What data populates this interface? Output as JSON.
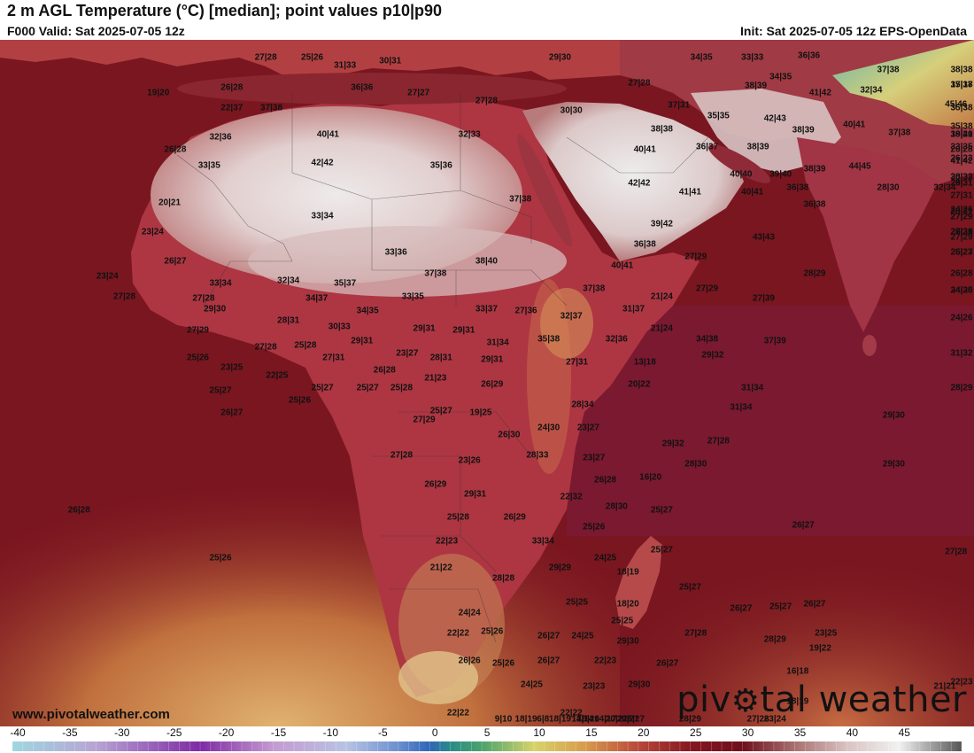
{
  "header": {
    "title": "2 m AGL Temperature (°C) [median]; point values p10|p90",
    "valid": "F000 Valid: Sat 2025-07-05 12z",
    "init": "Init: Sat 2025-07-05 12z EPS-OpenData"
  },
  "footer": {
    "website": "www.pivotalweather.com",
    "brand_left": "piv",
    "brand_right": "tal weather"
  },
  "colors": {
    "ocean": "#7a1620",
    "land_hot": "#e9dcdc",
    "land_warm": "#b0343d",
    "brand_accent": "#111111"
  },
  "colorbar": {
    "ticks": [
      "-40",
      "-35",
      "-30",
      "-25",
      "-20",
      "-15",
      "-10",
      "-5",
      "0",
      "5",
      "10",
      "15",
      "20",
      "25",
      "30",
      "35",
      "40",
      "45"
    ],
    "min": -40,
    "max": 51,
    "stops": [
      [
        -40,
        "#9fd7e0"
      ],
      [
        -32,
        "#b7a4d3"
      ],
      [
        -22,
        "#7e2aa4"
      ],
      [
        -15,
        "#c49ad1"
      ],
      [
        -8,
        "#b8c3e4"
      ],
      [
        -3,
        "#6c8fcf"
      ],
      [
        0,
        "#2f66b7"
      ],
      [
        2,
        "#2a8b87"
      ],
      [
        5,
        "#4aa36c"
      ],
      [
        10,
        "#d7d36a"
      ],
      [
        15,
        "#d89a4c"
      ],
      [
        20,
        "#b9483a"
      ],
      [
        25,
        "#851720"
      ],
      [
        30,
        "#6e0f1c"
      ],
      [
        35,
        "#a8706e"
      ],
      [
        40,
        "#d9c2c2"
      ],
      [
        45,
        "#f1f1f1"
      ],
      [
        51,
        "#555555"
      ]
    ]
  },
  "points": [
    {
      "label": "27|28",
      "lon": -8.5,
      "lat": 35.9
    },
    {
      "label": "25|26",
      "lon": -4.4,
      "lat": 35.9
    },
    {
      "label": "31|33",
      "lon": -1.5,
      "lat": 35.2
    },
    {
      "label": "30|31",
      "lon": 2.5,
      "lat": 35.6
    },
    {
      "label": "26|28",
      "lon": -11.5,
      "lat": 33.3
    },
    {
      "label": "36|36",
      "lon": 0.0,
      "lat": 33.3
    },
    {
      "label": "27|27",
      "lon": 5.0,
      "lat": 32.8
    },
    {
      "label": "27|28",
      "lon": 11.0,
      "lat": 32.1
    },
    {
      "label": "29|30",
      "lon": 17.5,
      "lat": 35.9
    },
    {
      "label": "27|28",
      "lon": 24.5,
      "lat": 33.7
    },
    {
      "label": "34|35",
      "lon": 30.0,
      "lat": 35.9
    },
    {
      "label": "33|33",
      "lon": 34.5,
      "lat": 35.9
    },
    {
      "label": "36|36",
      "lon": 39.5,
      "lat": 36.1
    },
    {
      "label": "37|38",
      "lon": 46.5,
      "lat": 34.8
    },
    {
      "label": "38|38",
      "lon": 57.5,
      "lat": 34.8
    },
    {
      "label": "35|37",
      "lon": 60.5,
      "lat": 33.5
    },
    {
      "label": "17|18",
      "lon": 64.5,
      "lat": 33.5
    },
    {
      "label": "19|20",
      "lon": -18.0,
      "lat": 32.8
    },
    {
      "label": "22|37",
      "lon": -11.5,
      "lat": 31.5
    },
    {
      "label": "37|38",
      "lon": -8.0,
      "lat": 31.5
    },
    {
      "label": "37|31",
      "lon": 28.0,
      "lat": 31.7
    },
    {
      "label": "38|39",
      "lon": 34.8,
      "lat": 33.4
    },
    {
      "label": "34|35",
      "lon": 37.0,
      "lat": 34.2
    },
    {
      "label": "41|42",
      "lon": 40.5,
      "lat": 32.8
    },
    {
      "label": "32|34",
      "lon": 45.0,
      "lat": 33.0
    },
    {
      "label": "35|38",
      "lon": 58.0,
      "lat": 31.5
    },
    {
      "label": "30|30",
      "lon": 18.5,
      "lat": 31.2
    },
    {
      "label": "35|35",
      "lon": 31.5,
      "lat": 30.8
    },
    {
      "label": "42|43",
      "lon": 36.5,
      "lat": 30.5
    },
    {
      "label": "45|46",
      "lon": 52.5,
      "lat": 31.8
    },
    {
      "label": "38|38",
      "lon": 26.5,
      "lat": 29.6
    },
    {
      "label": "38|39",
      "lon": 39.0,
      "lat": 29.5
    },
    {
      "label": "40|41",
      "lon": 43.5,
      "lat": 30.0
    },
    {
      "label": "37|38",
      "lon": 47.5,
      "lat": 29.3
    },
    {
      "label": "35|38",
      "lon": 54.0,
      "lat": 29.8
    },
    {
      "label": "39|41",
      "lon": 58.5,
      "lat": 29.1
    },
    {
      "label": "18|20",
      "lon": 71.0,
      "lat": 29.1
    },
    {
      "label": "40|41",
      "lon": -3.0,
      "lat": 29.1
    },
    {
      "label": "32|33",
      "lon": 9.5,
      "lat": 29.1
    },
    {
      "label": "32|36",
      "lon": -12.5,
      "lat": 28.9
    },
    {
      "label": "36|37",
      "lon": 30.5,
      "lat": 28.0
    },
    {
      "label": "38|39",
      "lon": 35.0,
      "lat": 28.0
    },
    {
      "label": "33|35",
      "lon": 61.0,
      "lat": 28.0
    },
    {
      "label": "26|28",
      "lon": 65.5,
      "lat": 27.8
    },
    {
      "label": "26|28",
      "lon": -16.5,
      "lat": 27.8
    },
    {
      "label": "40|41",
      "lon": 25.0,
      "lat": 27.8
    },
    {
      "label": "41|42",
      "lon": 55.5,
      "lat": 26.8
    },
    {
      "label": "26|23",
      "lon": 69.5,
      "lat": 27.0
    },
    {
      "label": "33|35",
      "lon": -13.5,
      "lat": 26.4
    },
    {
      "label": "42|42",
      "lon": -3.5,
      "lat": 26.6
    },
    {
      "label": "35|36",
      "lon": 7.0,
      "lat": 26.4
    },
    {
      "label": "38|39",
      "lon": 40.0,
      "lat": 26.1
    },
    {
      "label": "44|45",
      "lon": 44.0,
      "lat": 26.3
    },
    {
      "label": "39|40",
      "lon": 37.0,
      "lat": 25.6
    },
    {
      "label": "40|40",
      "lon": 33.5,
      "lat": 25.6
    },
    {
      "label": "28|32",
      "lon": 57.0,
      "lat": 25.4
    },
    {
      "label": "30|33",
      "lon": 63.5,
      "lat": 25.4
    },
    {
      "label": "42|42",
      "lon": 24.5,
      "lat": 24.8
    },
    {
      "label": "28|31",
      "lon": 67.5,
      "lat": 24.8
    },
    {
      "label": "29|31",
      "lon": 70.5,
      "lat": 24.8
    },
    {
      "label": "41|41",
      "lon": 29.0,
      "lat": 24.0
    },
    {
      "label": "40|41",
      "lon": 34.5,
      "lat": 24.0
    },
    {
      "label": "36|38",
      "lon": 38.5,
      "lat": 24.4
    },
    {
      "label": "28|30",
      "lon": 46.5,
      "lat": 24.4
    },
    {
      "label": "32|34",
      "lon": 51.5,
      "lat": 24.4
    },
    {
      "label": "27|31",
      "lon": 64.5,
      "lat": 23.7
    },
    {
      "label": "20|21",
      "lon": -17.0,
      "lat": 23.1
    },
    {
      "label": "37|38",
      "lon": 14.0,
      "lat": 23.4
    },
    {
      "label": "36|38",
      "lon": 40.0,
      "lat": 22.9
    },
    {
      "label": "28|31",
      "lon": 56.0,
      "lat": 22.3
    },
    {
      "label": "24|26",
      "lon": 60.5,
      "lat": 22.5
    },
    {
      "label": "27|29",
      "lon": 63.5,
      "lat": 21.8
    },
    {
      "label": "27|29",
      "lon": 68.0,
      "lat": 21.8
    },
    {
      "label": "33|34",
      "lon": -3.5,
      "lat": 21.9
    },
    {
      "label": "39|42",
      "lon": 26.5,
      "lat": 21.2
    },
    {
      "label": "23|24",
      "lon": -18.5,
      "lat": 20.5
    },
    {
      "label": "27|29",
      "lon": 54.5,
      "lat": 20.5
    },
    {
      "label": "25|28",
      "lon": 57.5,
      "lat": 20.5
    },
    {
      "label": "28|31",
      "lon": 60.5,
      "lat": 20.5
    },
    {
      "label": "27|29",
      "lon": 64.5,
      "lat": 20.0
    },
    {
      "label": "43|43",
      "lon": 35.5,
      "lat": 20.0
    },
    {
      "label": "36|38",
      "lon": 25.0,
      "lat": 19.4
    },
    {
      "label": "33|36",
      "lon": 3.0,
      "lat": 18.7
    },
    {
      "label": "26|23",
      "lon": 56.0,
      "lat": 18.7
    },
    {
      "label": "25|27",
      "lon": 61.0,
      "lat": 18.7
    },
    {
      "label": "26|27",
      "lon": -16.5,
      "lat": 17.9
    },
    {
      "label": "38|40",
      "lon": 11.0,
      "lat": 17.9
    },
    {
      "label": "27|29",
      "lon": 29.5,
      "lat": 18.3
    },
    {
      "label": "40|41",
      "lon": 23.0,
      "lat": 17.5
    },
    {
      "label": "37|38",
      "lon": 6.5,
      "lat": 16.8
    },
    {
      "label": "28|29",
      "lon": 40.0,
      "lat": 16.8
    },
    {
      "label": "26|28",
      "lon": 59.0,
      "lat": 16.8
    },
    {
      "label": "23|24",
      "lon": -22.5,
      "lat": 16.6
    },
    {
      "label": "33|34",
      "lon": -12.5,
      "lat": 16.0
    },
    {
      "label": "32|34",
      "lon": -6.5,
      "lat": 16.2
    },
    {
      "label": "35|37",
      "lon": -1.5,
      "lat": 16.0
    },
    {
      "label": "37|38",
      "lon": 20.5,
      "lat": 15.5
    },
    {
      "label": "27|29",
      "lon": 30.5,
      "lat": 15.5
    },
    {
      "label": "24|25",
      "lon": 58.0,
      "lat": 15.3
    },
    {
      "label": "34|38",
      "lon": 61.0,
      "lat": 15.3
    },
    {
      "label": "27|28",
      "lon": -21.0,
      "lat": 14.8
    },
    {
      "label": "27|28",
      "lon": -14.0,
      "lat": 14.6
    },
    {
      "label": "34|37",
      "lon": -4.0,
      "lat": 14.6
    },
    {
      "label": "33|35",
      "lon": 4.5,
      "lat": 14.8
    },
    {
      "label": "21|24",
      "lon": 26.5,
      "lat": 14.8
    },
    {
      "label": "27|39",
      "lon": 35.5,
      "lat": 14.6
    },
    {
      "label": "29|30",
      "lon": -13.0,
      "lat": 13.7
    },
    {
      "label": "34|35",
      "lon": 0.5,
      "lat": 13.5
    },
    {
      "label": "33|37",
      "lon": 11.0,
      "lat": 13.7
    },
    {
      "label": "27|36",
      "lon": 14.5,
      "lat": 13.5
    },
    {
      "label": "32|37",
      "lon": 18.5,
      "lat": 13.1
    },
    {
      "label": "31|37",
      "lon": 24.0,
      "lat": 13.7
    },
    {
      "label": "24|26",
      "lon": 58.0,
      "lat": 12.9
    },
    {
      "label": "28|31",
      "lon": -6.5,
      "lat": 12.7
    },
    {
      "label": "30|33",
      "lon": -2.0,
      "lat": 12.1
    },
    {
      "label": "29|31",
      "lon": 5.5,
      "lat": 12.0
    },
    {
      "label": "29|31",
      "lon": 9.0,
      "lat": 11.8
    },
    {
      "label": "21|24",
      "lon": 26.5,
      "lat": 12.0
    },
    {
      "label": "27|29",
      "lon": -14.5,
      "lat": 11.8
    },
    {
      "label": "29|31",
      "lon": 0.0,
      "lat": 10.9
    },
    {
      "label": "31|34",
      "lon": 12.0,
      "lat": 10.7
    },
    {
      "label": "35|38",
      "lon": 16.5,
      "lat": 11.0
    },
    {
      "label": "32|36",
      "lon": 22.5,
      "lat": 11.0
    },
    {
      "label": "34|38",
      "lon": 30.5,
      "lat": 11.0
    },
    {
      "label": "37|39",
      "lon": 36.5,
      "lat": 10.9
    },
    {
      "label": "27|28",
      "lon": -8.5,
      "lat": 10.3
    },
    {
      "label": "25|28",
      "lon": -5.0,
      "lat": 10.5
    },
    {
      "label": "23|27",
      "lon": 4.0,
      "lat": 9.8
    },
    {
      "label": "31|32",
      "lon": 57.0,
      "lat": 9.8
    },
    {
      "label": "25|26",
      "lon": -14.5,
      "lat": 9.4
    },
    {
      "label": "27|31",
      "lon": -2.5,
      "lat": 9.4
    },
    {
      "label": "28|31",
      "lon": 7.0,
      "lat": 9.4
    },
    {
      "label": "29|31",
      "lon": 11.5,
      "lat": 9.2
    },
    {
      "label": "27|31",
      "lon": 19.0,
      "lat": 9.0
    },
    {
      "label": "13|18",
      "lon": 25.0,
      "lat": 9.0
    },
    {
      "label": "29|32",
      "lon": 31.0,
      "lat": 9.6
    },
    {
      "label": "23|25",
      "lon": -11.5,
      "lat": 8.5
    },
    {
      "label": "22|25",
      "lon": -7.5,
      "lat": 7.8
    },
    {
      "label": "26|28",
      "lon": 2.0,
      "lat": 8.3
    },
    {
      "label": "21|23",
      "lon": 6.5,
      "lat": 7.6
    },
    {
      "label": "26|29",
      "lon": 11.5,
      "lat": 7.0
    },
    {
      "label": "20|22",
      "lon": 24.5,
      "lat": 7.0
    },
    {
      "label": "25|27",
      "lon": -12.5,
      "lat": 6.5
    },
    {
      "label": "25|27",
      "lon": -3.5,
      "lat": 6.7
    },
    {
      "label": "25|27",
      "lon": 0.5,
      "lat": 6.7
    },
    {
      "label": "25|28",
      "lon": 3.5,
      "lat": 6.7
    },
    {
      "label": "31|34",
      "lon": 34.5,
      "lat": 6.7
    },
    {
      "label": "28|29",
      "lon": 57.0,
      "lat": 6.7
    },
    {
      "label": "25|26",
      "lon": -5.5,
      "lat": 5.6
    },
    {
      "label": "28|34",
      "lon": 19.5,
      "lat": 5.2
    },
    {
      "label": "31|34",
      "lon": 33.5,
      "lat": 5.0
    },
    {
      "label": "26|27",
      "lon": -11.5,
      "lat": 4.5
    },
    {
      "label": "25|27",
      "lon": 7.0,
      "lat": 4.7
    },
    {
      "label": "19|25",
      "lon": 10.5,
      "lat": 4.5
    },
    {
      "label": "27|29",
      "lon": 5.5,
      "lat": 3.9
    },
    {
      "label": "29|30",
      "lon": 47.0,
      "lat": 4.3
    },
    {
      "label": "24|30",
      "lon": 16.5,
      "lat": 3.2
    },
    {
      "label": "23|27",
      "lon": 20.0,
      "lat": 3.2
    },
    {
      "label": "26|30",
      "lon": 13.0,
      "lat": 2.6
    },
    {
      "label": "29|32",
      "lon": 27.5,
      "lat": 1.8
    },
    {
      "label": "27|28",
      "lon": 31.5,
      "lat": 2.0
    },
    {
      "label": "27|28",
      "lon": 3.5,
      "lat": 0.8
    },
    {
      "label": "28|33",
      "lon": 15.5,
      "lat": 0.8
    },
    {
      "label": "23|27",
      "lon": 20.5,
      "lat": 0.5
    },
    {
      "label": "23|26",
      "lon": 9.5,
      "lat": 0.3
    },
    {
      "label": "28|30",
      "lon": 29.5,
      "lat": 0.0
    },
    {
      "label": "29|30",
      "lon": 47.0,
      "lat": 0.0
    },
    {
      "label": "26|28",
      "lon": 21.5,
      "lat": -1.4
    },
    {
      "label": "16|20",
      "lon": 25.5,
      "lat": -1.2
    },
    {
      "label": "26|29",
      "lon": 6.5,
      "lat": -1.8
    },
    {
      "label": "29|31",
      "lon": 10.0,
      "lat": -2.7
    },
    {
      "label": "22|32",
      "lon": 18.5,
      "lat": -2.9
    },
    {
      "label": "28|30",
      "lon": 22.5,
      "lat": -3.8
    },
    {
      "label": "25|27",
      "lon": 26.5,
      "lat": -4.1
    },
    {
      "label": "26|28",
      "lon": -25.0,
      "lat": -4.1
    },
    {
      "label": "25|28",
      "lon": 8.5,
      "lat": -4.7
    },
    {
      "label": "26|29",
      "lon": 13.5,
      "lat": -4.7
    },
    {
      "label": "25|26",
      "lon": 20.5,
      "lat": -5.6
    },
    {
      "label": "26|27",
      "lon": 39.0,
      "lat": -5.4
    },
    {
      "label": "22|23",
      "lon": 7.5,
      "lat": -6.8
    },
    {
      "label": "33|34",
      "lon": 16.0,
      "lat": -6.8
    },
    {
      "label": "25|27",
      "lon": 26.5,
      "lat": -7.6
    },
    {
      "label": "27|28",
      "lon": 52.5,
      "lat": -7.8
    },
    {
      "label": "25|26",
      "lon": -12.5,
      "lat": -8.3
    },
    {
      "label": "24|25",
      "lon": 21.5,
      "lat": -8.3
    },
    {
      "label": "21|22",
      "lon": 7.0,
      "lat": -9.2
    },
    {
      "label": "29|29",
      "lon": 17.5,
      "lat": -9.2
    },
    {
      "label": "18|19",
      "lon": 23.5,
      "lat": -9.6
    },
    {
      "label": "28|28",
      "lon": 12.5,
      "lat": -10.1
    },
    {
      "label": "25|27",
      "lon": 29.0,
      "lat": -10.9
    },
    {
      "label": "25|25",
      "lon": 19.0,
      "lat": -12.2
    },
    {
      "label": "18|20",
      "lon": 23.5,
      "lat": -12.4
    },
    {
      "label": "26|27",
      "lon": 33.5,
      "lat": -12.8
    },
    {
      "label": "25|27",
      "lon": 37.0,
      "lat": -12.6
    },
    {
      "label": "26|27",
      "lon": 40.0,
      "lat": -12.4
    },
    {
      "label": "24|24",
      "lon": 9.5,
      "lat": -13.2
    },
    {
      "label": "25|25",
      "lon": 23.0,
      "lat": -13.9
    },
    {
      "label": "22|22",
      "lon": 8.5,
      "lat": -15.0
    },
    {
      "label": "25|26",
      "lon": 11.5,
      "lat": -14.8
    },
    {
      "label": "26|27",
      "lon": 16.5,
      "lat": -15.2
    },
    {
      "label": "24|25",
      "lon": 19.5,
      "lat": -15.2
    },
    {
      "label": "27|28",
      "lon": 29.5,
      "lat": -15.0
    },
    {
      "label": "23|25",
      "lon": 41.0,
      "lat": -15.0
    },
    {
      "label": "28|29",
      "lon": 36.5,
      "lat": -15.5
    },
    {
      "label": "29|30",
      "lon": 23.5,
      "lat": -15.7
    },
    {
      "label": "19|22",
      "lon": 40.5,
      "lat": -16.3
    },
    {
      "label": "26|26",
      "lon": 9.5,
      "lat": -17.4
    },
    {
      "label": "25|26",
      "lon": 12.5,
      "lat": -17.6
    },
    {
      "label": "26|27",
      "lon": 16.5,
      "lat": -17.4
    },
    {
      "label": "22|23",
      "lon": 21.5,
      "lat": -17.4
    },
    {
      "label": "26|27",
      "lon": 27.0,
      "lat": -17.6
    },
    {
      "label": "16|18",
      "lon": 38.5,
      "lat": -18.3
    },
    {
      "label": "24|25",
      "lon": 15.0,
      "lat": -19.5
    },
    {
      "label": "23|23",
      "lon": 20.5,
      "lat": -19.7
    },
    {
      "label": "29|30",
      "lon": 24.5,
      "lat": -19.5
    },
    {
      "label": "21|21",
      "lon": 51.5,
      "lat": -19.7
    },
    {
      "label": "22|23",
      "lon": 56.5,
      "lat": -19.3
    },
    {
      "label": "18|19",
      "lon": 38.5,
      "lat": -21.0
    },
    {
      "label": "22|22",
      "lon": 8.5,
      "lat": -22.0
    },
    {
      "label": "22|22",
      "lon": 18.5,
      "lat": -22.0
    },
    {
      "label": "27|28",
      "lon": 35.0,
      "lat": -22.9
    },
    {
      "label": "18|19",
      "lon": 17.5,
      "lat": -23.7
    },
    {
      "label": "19|20",
      "lon": 20.0,
      "lat": -23.3
    },
    {
      "label": "28|29",
      "lon": 29.0,
      "lat": -23.3
    },
    {
      "label": "23|24",
      "lon": 36.5,
      "lat": -24.6
    },
    {
      "label": "14|14",
      "lon": 19.5,
      "lat": -25.5
    },
    {
      "label": "26|27",
      "lon": 24.0,
      "lat": -25.2
    },
    {
      "label": "20|21",
      "lon": 22.5,
      "lat": -26.7
    },
    {
      "label": "18|19",
      "lon": 14.5,
      "lat": -27.3
    },
    {
      "label": "13|14",
      "lon": 19.5,
      "lat": -27.8
    },
    {
      "label": "20|21",
      "lon": 23.5,
      "lat": -28.5
    },
    {
      "label": "6|8",
      "lon": 16.0,
      "lat": -31.5
    },
    {
      "label": "14|17",
      "lon": 21.5,
      "lat": -32.2
    },
    {
      "label": "9|10",
      "lon": 12.5,
      "lat": -33.5
    }
  ]
}
